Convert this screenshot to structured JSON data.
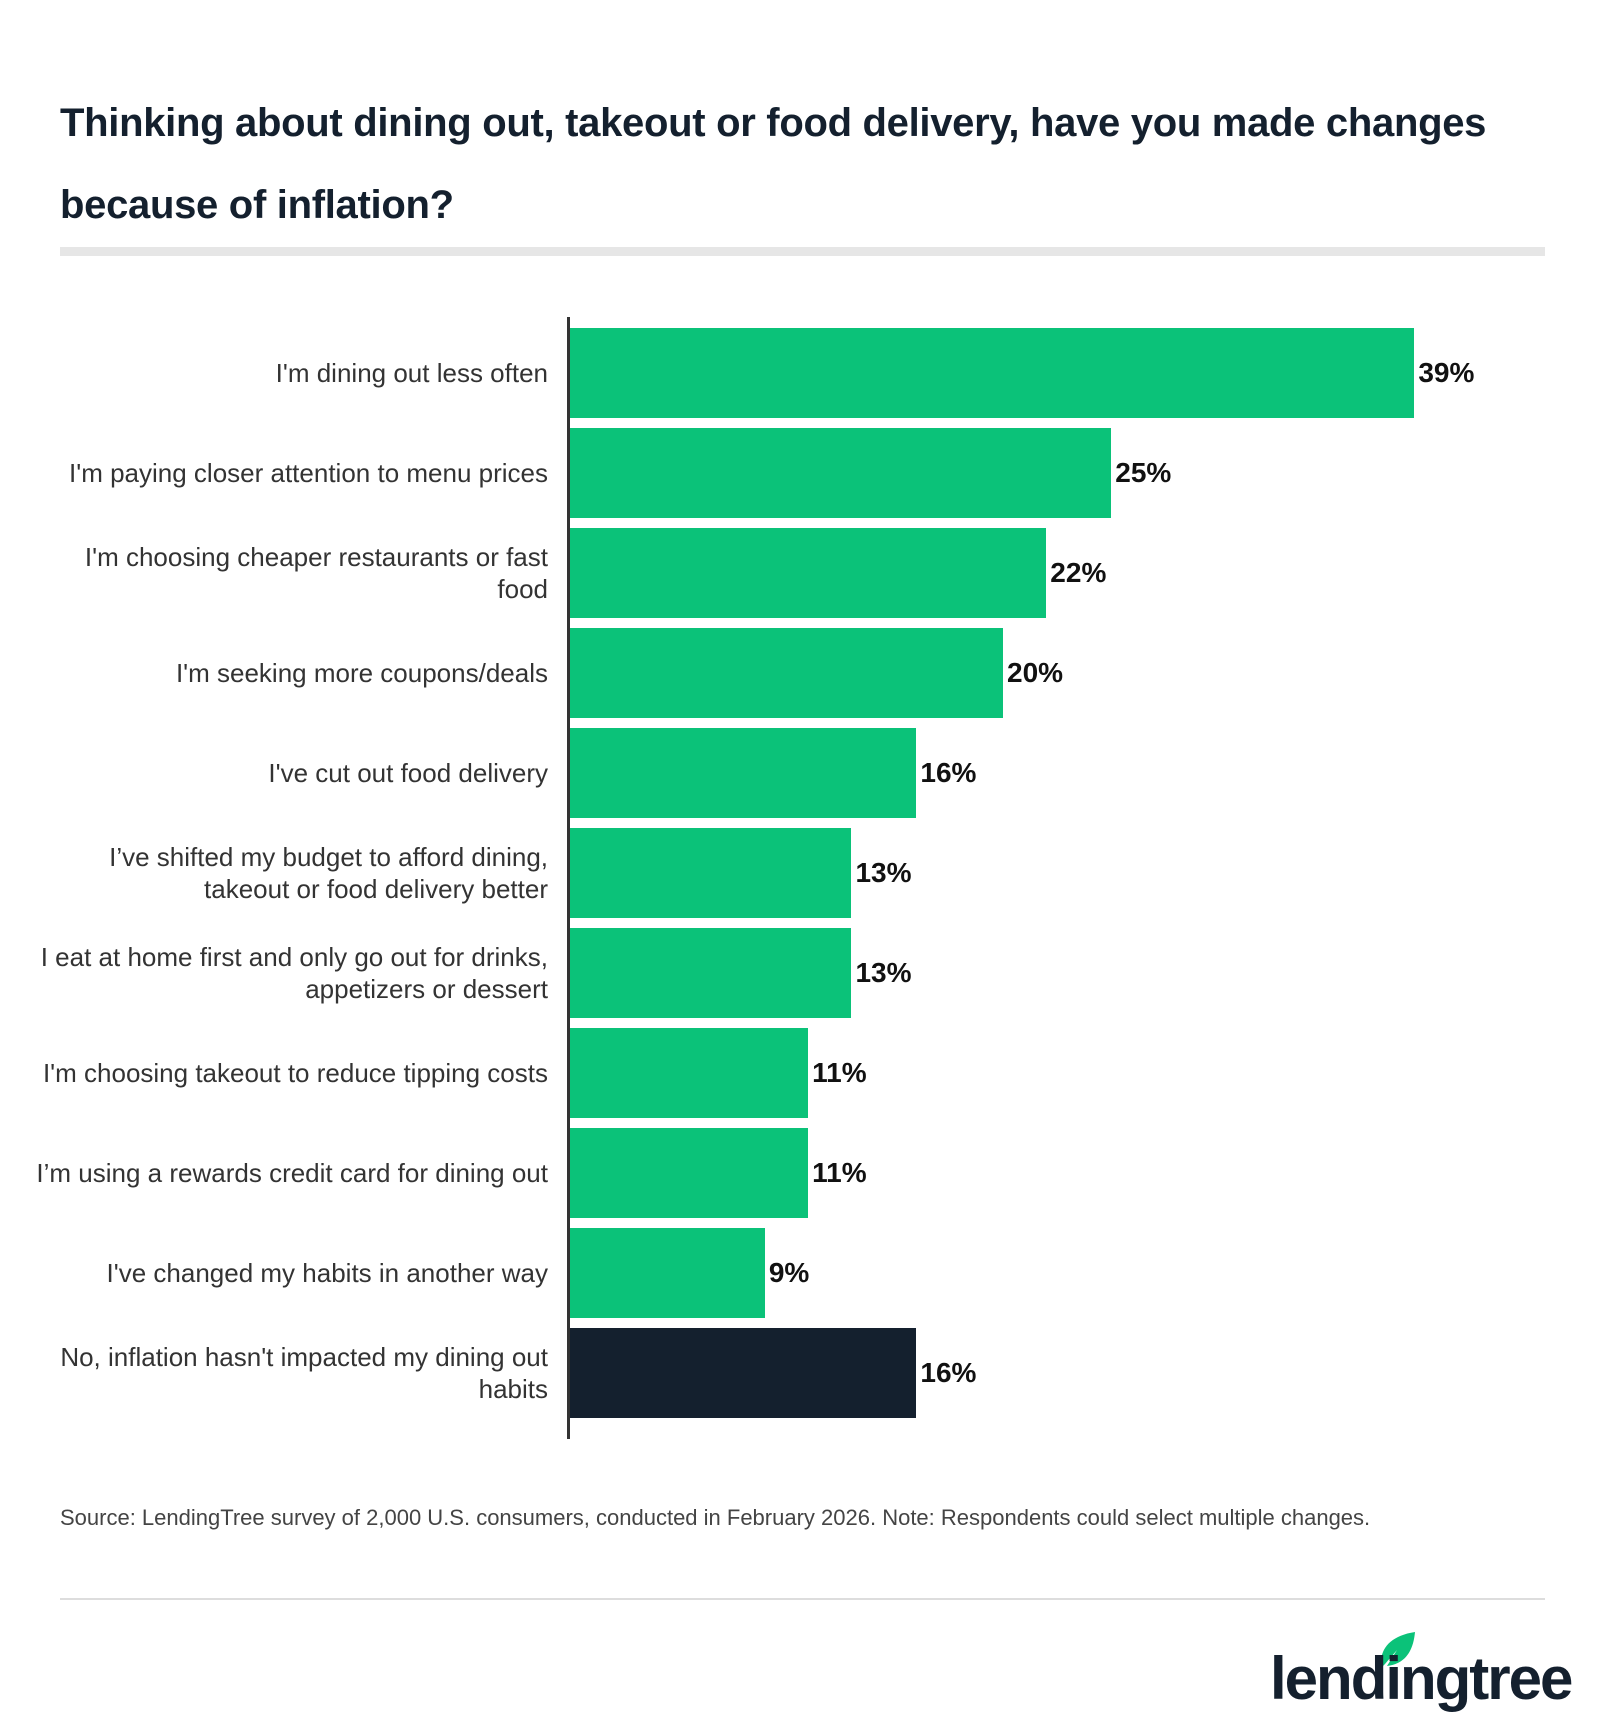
{
  "chart_data": {
    "type": "bar",
    "orientation": "horizontal",
    "title": "Thinking about dining out, takeout or food delivery, have you made changes because of inflation?",
    "categories": [
      "I'm dining out less often",
      "I'm paying closer attention to menu prices",
      "I'm choosing cheaper restaurants or fast food",
      "I'm seeking more coupons/deals",
      "I've cut out food delivery",
      "I’ve shifted my budget to afford dining, takeout or food delivery better",
      "I eat at home first and only go out for drinks, appetizers or dessert",
      "I'm choosing takeout to reduce tipping costs",
      "I’m using a rewards credit card for dining out",
      "I've changed my habits in another way",
      "No, inflation hasn't impacted my dining out habits"
    ],
    "values": [
      39,
      25,
      22,
      20,
      16,
      13,
      13,
      11,
      11,
      9,
      16
    ],
    "value_labels": [
      "39%",
      "25%",
      "22%",
      "20%",
      "16%",
      "13%",
      "13%",
      "11%",
      "11%",
      "9%",
      "16%"
    ],
    "unit": "%",
    "bar_colors": [
      "#0bc279",
      "#0bc279",
      "#0bc279",
      "#0bc279",
      "#0bc279",
      "#0bc279",
      "#0bc279",
      "#0bc279",
      "#0bc279",
      "#0bc279",
      "#14202e"
    ],
    "grid": false,
    "legend": "none"
  },
  "source": "Source: LendingTree survey of 2,000 U.S. consumers, conducted in February 2026. Note: Respondents could select multiple changes.",
  "logo": {
    "text": "lendingtree",
    "icon": "leaf-icon",
    "color": "#0bc279"
  }
}
